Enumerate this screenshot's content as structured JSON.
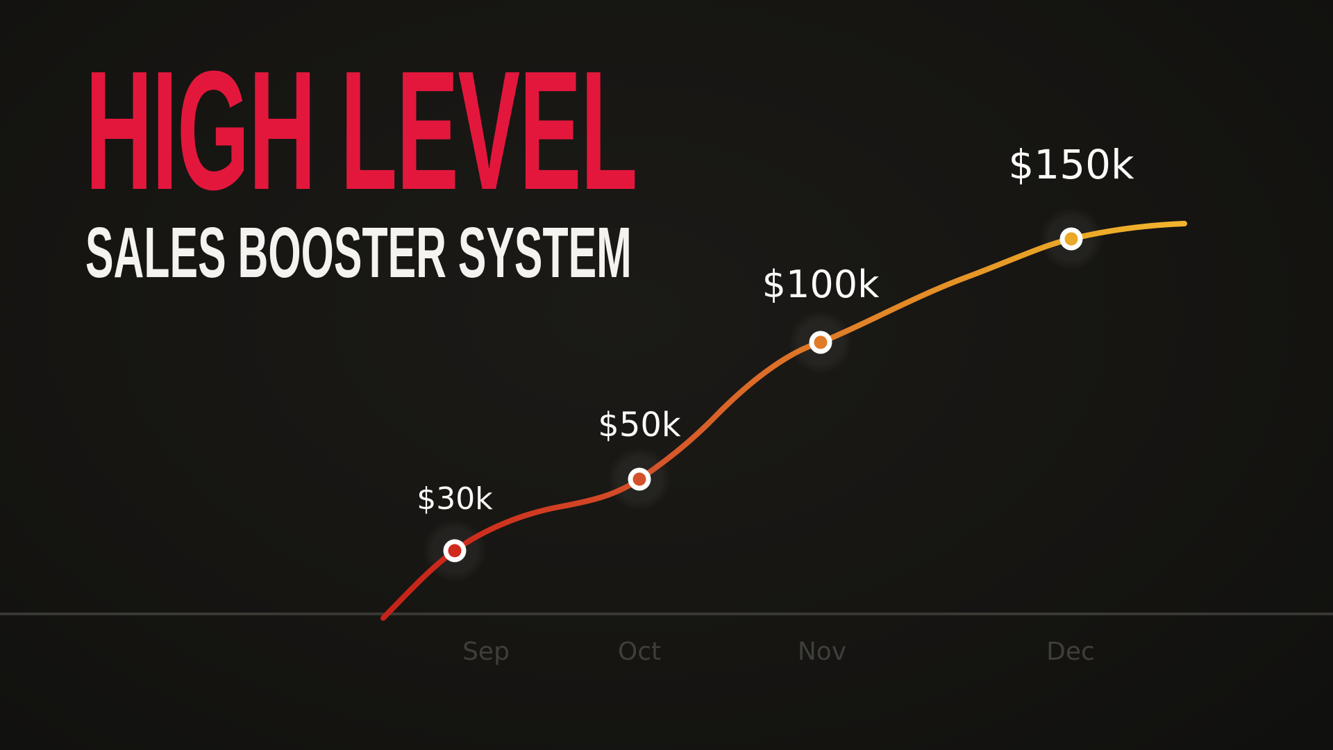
{
  "page": {
    "background_color": "#161512"
  },
  "header": {
    "title": "HIGH LEVEL",
    "subtitle": "SALES BOOSTER SYSTEM",
    "title_color": "#e3173c",
    "subtitle_color": "#f5f3f0"
  },
  "chart_data": {
    "type": "line",
    "title": "",
    "xlabel": "",
    "ylabel": "",
    "categories": [
      "Sep",
      "Oct",
      "Nov",
      "Dec"
    ],
    "values": [
      30000,
      50000,
      100000,
      150000
    ],
    "point_labels": [
      "$30k",
      "$50k",
      "$100k",
      "$150k"
    ],
    "point_label_color": "#fbfaf8",
    "point_colors": [
      "#d2291d",
      "#d4502a",
      "#e07b27",
      "#eaa827"
    ],
    "marker_ring_color": "#ffffff",
    "line_gradient": [
      "#c2231a",
      "#cd2a1b",
      "#d4502a",
      "#e07b27",
      "#eaa827",
      "#f2b42e"
    ],
    "axis": {
      "baseline_color": "#393834",
      "tick_label_color": "#3e3e3a"
    },
    "ylim": [
      0,
      165000
    ],
    "grid": false,
    "legend": false
  }
}
